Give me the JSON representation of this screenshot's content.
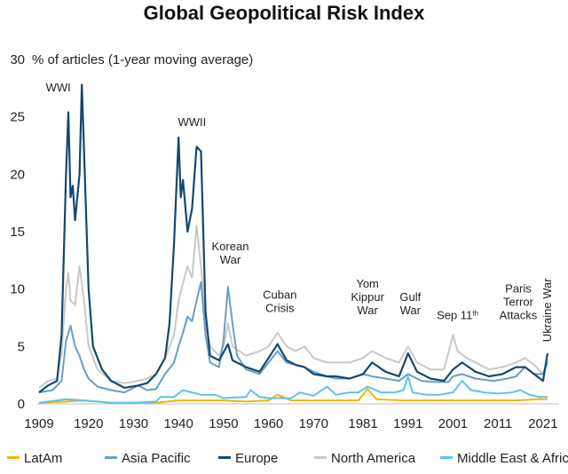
{
  "chart_data": {
    "type": "line",
    "title": "Global Geopolitical Risk Index",
    "ylabel": "% of articles (1-year moving average)",
    "ylim": [
      0,
      30
    ],
    "yticks": [
      0,
      5,
      10,
      15,
      20,
      25,
      30
    ],
    "xlim": [
      1909,
      2023
    ],
    "xticks": [
      1909,
      1920,
      1930,
      1940,
      1950,
      1960,
      1970,
      1981,
      1991,
      2001,
      2011,
      2021
    ],
    "series": [
      {
        "name": "LatAm",
        "color": "#f2b705",
        "points": [
          [
            1909,
            0.1
          ],
          [
            1915,
            0.2
          ],
          [
            1919,
            0.3
          ],
          [
            1925,
            0.1
          ],
          [
            1935,
            0.1
          ],
          [
            1940,
            0.3
          ],
          [
            1945,
            0.3
          ],
          [
            1950,
            0.3
          ],
          [
            1955,
            0.2
          ],
          [
            1960,
            0.3
          ],
          [
            1962,
            0.8
          ],
          [
            1965,
            0.3
          ],
          [
            1970,
            0.3
          ],
          [
            1975,
            0.3
          ],
          [
            1980,
            0.3
          ],
          [
            1982,
            1.3
          ],
          [
            1984,
            0.4
          ],
          [
            1990,
            0.3
          ],
          [
            1995,
            0.3
          ],
          [
            2000,
            0.3
          ],
          [
            2005,
            0.3
          ],
          [
            2010,
            0.3
          ],
          [
            2015,
            0.3
          ],
          [
            2020,
            0.4
          ],
          [
            2022,
            0.4
          ]
        ]
      },
      {
        "name": "Asia Pacific",
        "color": "#6a9ec5",
        "points": [
          [
            1909,
            1.0
          ],
          [
            1912,
            1.2
          ],
          [
            1914,
            2.0
          ],
          [
            1915,
            5.5
          ],
          [
            1916,
            6.8
          ],
          [
            1917,
            5.0
          ],
          [
            1918,
            4.2
          ],
          [
            1919,
            3.0
          ],
          [
            1920,
            2.2
          ],
          [
            1922,
            1.5
          ],
          [
            1925,
            1.2
          ],
          [
            1928,
            1.0
          ],
          [
            1931,
            1.6
          ],
          [
            1933,
            1.2
          ],
          [
            1935,
            1.3
          ],
          [
            1937,
            2.6
          ],
          [
            1939,
            3.6
          ],
          [
            1940,
            5.0
          ],
          [
            1941,
            6.2
          ],
          [
            1942,
            7.6
          ],
          [
            1943,
            7.2
          ],
          [
            1944,
            9.0
          ],
          [
            1945,
            10.6
          ],
          [
            1946,
            6.0
          ],
          [
            1947,
            3.6
          ],
          [
            1949,
            3.2
          ],
          [
            1950,
            5.6
          ],
          [
            1951,
            10.2
          ],
          [
            1952,
            7.0
          ],
          [
            1953,
            4.2
          ],
          [
            1955,
            3.0
          ],
          [
            1958,
            2.6
          ],
          [
            1960,
            3.6
          ],
          [
            1962,
            4.6
          ],
          [
            1964,
            3.6
          ],
          [
            1966,
            3.4
          ],
          [
            1968,
            3.2
          ],
          [
            1970,
            2.8
          ],
          [
            1973,
            2.4
          ],
          [
            1975,
            2.2
          ],
          [
            1978,
            2.2
          ],
          [
            1981,
            2.6
          ],
          [
            1983,
            2.4
          ],
          [
            1986,
            2.2
          ],
          [
            1989,
            2.0
          ],
          [
            1991,
            2.6
          ],
          [
            1994,
            2.0
          ],
          [
            1997,
            1.9
          ],
          [
            2000,
            1.9
          ],
          [
            2001,
            2.4
          ],
          [
            2003,
            2.6
          ],
          [
            2006,
            2.2
          ],
          [
            2010,
            2.0
          ],
          [
            2013,
            2.2
          ],
          [
            2015,
            2.4
          ],
          [
            2017,
            3.2
          ],
          [
            2019,
            2.6
          ],
          [
            2021,
            2.6
          ],
          [
            2022,
            3.6
          ]
        ]
      },
      {
        "name": "Europe",
        "color": "#14486f",
        "points": [
          [
            1909,
            1.0
          ],
          [
            1911,
            1.6
          ],
          [
            1913,
            2.0
          ],
          [
            1914,
            6.0
          ],
          [
            1915,
            20.0
          ],
          [
            1915.5,
            25.4
          ],
          [
            1916,
            18.0
          ],
          [
            1916.5,
            19.0
          ],
          [
            1917,
            16.0
          ],
          [
            1918,
            20.0
          ],
          [
            1918.5,
            27.8
          ],
          [
            1919,
            22.0
          ],
          [
            1920,
            10.0
          ],
          [
            1921,
            5.0
          ],
          [
            1923,
            3.0
          ],
          [
            1925,
            2.0
          ],
          [
            1928,
            1.4
          ],
          [
            1931,
            1.6
          ],
          [
            1933,
            1.8
          ],
          [
            1935,
            2.6
          ],
          [
            1937,
            4.0
          ],
          [
            1938,
            7.0
          ],
          [
            1939,
            14.0
          ],
          [
            1940,
            23.2
          ],
          [
            1940.5,
            18.0
          ],
          [
            1941,
            19.5
          ],
          [
            1942,
            15.0
          ],
          [
            1943,
            17.0
          ],
          [
            1944,
            22.4
          ],
          [
            1945,
            22.0
          ],
          [
            1946,
            8.0
          ],
          [
            1947,
            4.2
          ],
          [
            1949,
            3.8
          ],
          [
            1950,
            4.5
          ],
          [
            1951,
            5.2
          ],
          [
            1952,
            3.8
          ],
          [
            1955,
            3.2
          ],
          [
            1958,
            2.8
          ],
          [
            1960,
            4.0
          ],
          [
            1962,
            5.2
          ],
          [
            1964,
            3.8
          ],
          [
            1966,
            3.4
          ],
          [
            1968,
            3.2
          ],
          [
            1970,
            2.6
          ],
          [
            1973,
            2.4
          ],
          [
            1975,
            2.4
          ],
          [
            1978,
            2.2
          ],
          [
            1981,
            2.6
          ],
          [
            1983,
            3.6
          ],
          [
            1986,
            2.8
          ],
          [
            1989,
            2.4
          ],
          [
            1991,
            4.4
          ],
          [
            1993,
            2.8
          ],
          [
            1996,
            2.2
          ],
          [
            1999,
            2.0
          ],
          [
            2001,
            3.0
          ],
          [
            2003,
            3.6
          ],
          [
            2006,
            2.8
          ],
          [
            2009,
            2.4
          ],
          [
            2012,
            2.6
          ],
          [
            2015,
            3.2
          ],
          [
            2017,
            3.2
          ],
          [
            2019,
            2.6
          ],
          [
            2021,
            2.0
          ],
          [
            2022,
            4.4
          ]
        ]
      },
      {
        "name": "North America",
        "color": "#c9c9c9",
        "points": [
          [
            1909,
            1.4
          ],
          [
            1911,
            2.0
          ],
          [
            1913,
            2.2
          ],
          [
            1914,
            4.5
          ],
          [
            1915,
            10.0
          ],
          [
            1915.5,
            11.4
          ],
          [
            1916,
            9.0
          ],
          [
            1917,
            8.6
          ],
          [
            1918,
            12.0
          ],
          [
            1919,
            9.0
          ],
          [
            1920,
            5.0
          ],
          [
            1922,
            3.0
          ],
          [
            1925,
            2.0
          ],
          [
            1928,
            1.8
          ],
          [
            1931,
            2.0
          ],
          [
            1933,
            2.2
          ],
          [
            1935,
            2.6
          ],
          [
            1937,
            4.0
          ],
          [
            1939,
            6.0
          ],
          [
            1940,
            9.0
          ],
          [
            1941,
            10.5
          ],
          [
            1942,
            12.0
          ],
          [
            1943,
            11.0
          ],
          [
            1944,
            15.5
          ],
          [
            1945,
            12.0
          ],
          [
            1946,
            7.0
          ],
          [
            1947,
            5.0
          ],
          [
            1949,
            4.2
          ],
          [
            1950,
            5.0
          ],
          [
            1951,
            7.0
          ],
          [
            1952,
            5.0
          ],
          [
            1955,
            4.2
          ],
          [
            1958,
            4.6
          ],
          [
            1960,
            5.0
          ],
          [
            1962,
            6.2
          ],
          [
            1964,
            5.0
          ],
          [
            1966,
            4.6
          ],
          [
            1968,
            5.0
          ],
          [
            1970,
            4.0
          ],
          [
            1973,
            3.6
          ],
          [
            1975,
            3.6
          ],
          [
            1978,
            3.6
          ],
          [
            1981,
            4.0
          ],
          [
            1983,
            4.6
          ],
          [
            1986,
            4.0
          ],
          [
            1989,
            3.6
          ],
          [
            1991,
            5.0
          ],
          [
            1993,
            3.6
          ],
          [
            1996,
            3.0
          ],
          [
            1999,
            3.0
          ],
          [
            2001,
            6.0
          ],
          [
            2002,
            4.6
          ],
          [
            2004,
            4.0
          ],
          [
            2006,
            3.6
          ],
          [
            2009,
            3.0
          ],
          [
            2012,
            3.2
          ],
          [
            2015,
            3.6
          ],
          [
            2017,
            4.0
          ],
          [
            2019,
            3.4
          ],
          [
            2021,
            2.6
          ],
          [
            2022,
            3.8
          ]
        ]
      },
      {
        "name": "Middle East & Africa",
        "color": "#5ec2f2",
        "points": [
          [
            1909,
            0.1
          ],
          [
            1915,
            0.4
          ],
          [
            1919,
            0.3
          ],
          [
            1925,
            0.1
          ],
          [
            1930,
            0.1
          ],
          [
            1935,
            0.2
          ],
          [
            1936,
            0.6
          ],
          [
            1939,
            0.6
          ],
          [
            1941,
            1.2
          ],
          [
            1943,
            1.0
          ],
          [
            1945,
            0.8
          ],
          [
            1948,
            0.8
          ],
          [
            1950,
            0.5
          ],
          [
            1955,
            0.6
          ],
          [
            1956,
            1.2
          ],
          [
            1958,
            0.6
          ],
          [
            1960,
            0.5
          ],
          [
            1965,
            0.5
          ],
          [
            1967,
            1.0
          ],
          [
            1970,
            0.7
          ],
          [
            1973,
            1.5
          ],
          [
            1975,
            0.8
          ],
          [
            1978,
            1.0
          ],
          [
            1980,
            1.0
          ],
          [
            1982,
            1.5
          ],
          [
            1985,
            1.0
          ],
          [
            1988,
            1.0
          ],
          [
            1990,
            1.2
          ],
          [
            1991,
            2.4
          ],
          [
            1992,
            1.0
          ],
          [
            1995,
            0.8
          ],
          [
            1998,
            0.8
          ],
          [
            2001,
            1.0
          ],
          [
            2003,
            2.0
          ],
          [
            2005,
            1.2
          ],
          [
            2008,
            1.0
          ],
          [
            2011,
            0.9
          ],
          [
            2014,
            1.0
          ],
          [
            2016,
            1.2
          ],
          [
            2018,
            0.8
          ],
          [
            2020,
            0.6
          ],
          [
            2022,
            0.6
          ]
        ]
      }
    ],
    "annotations": [
      {
        "lines": [
          "WWI"
        ],
        "year": 1910.5,
        "value": 27.2,
        "anchor": "start"
      },
      {
        "lines": [
          "WWII"
        ],
        "year": 1943,
        "value": 24.2,
        "anchor": "middle"
      },
      {
        "lines": [
          "Korean",
          "War"
        ],
        "year": 1951.5,
        "value": 12.2,
        "anchor": "middle"
      },
      {
        "lines": [
          "Cuban",
          "Crisis"
        ],
        "year": 1962.5,
        "value": 8.0,
        "anchor": "middle"
      },
      {
        "lines": [
          "Yom",
          "Kippur",
          "War"
        ],
        "year": 1982,
        "value": 7.8,
        "anchor": "middle"
      },
      {
        "lines": [
          "Gulf",
          "War"
        ],
        "year": 1991.5,
        "value": 7.8,
        "anchor": "middle"
      },
      {
        "lines": [
          "Sep 11"
        ],
        "sup": "th",
        "year": 2002,
        "value": 7.4,
        "anchor": "middle"
      },
      {
        "lines": [
          "Paris",
          "Terror",
          "Attacks"
        ],
        "year": 2015.5,
        "value": 7.4,
        "anchor": "middle"
      },
      {
        "lines": [
          "Ukraine War"
        ],
        "year": 2022,
        "value": 5.4,
        "anchor": "rotated"
      }
    ]
  }
}
